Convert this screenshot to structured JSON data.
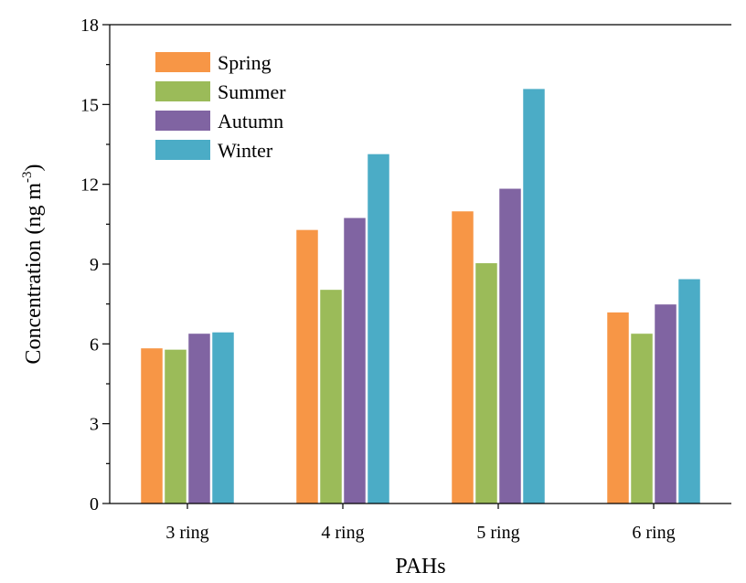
{
  "chart_data": {
    "type": "bar",
    "title": "",
    "xlabel": "PAHs",
    "ylabel": {
      "main": "Concentration (ng m",
      "superscript": "-3",
      "close": ")"
    },
    "categories": [
      "3 ring",
      "4 ring",
      "5 ring",
      "6 ring"
    ],
    "ylim": [
      0,
      18
    ],
    "yticks": [
      0,
      3,
      6,
      9,
      12,
      15,
      18
    ],
    "ytick_labels": [
      "0",
      "3",
      "6",
      "9",
      "12",
      "15",
      "18"
    ],
    "grid": false,
    "legend_position": "top-left",
    "series": [
      {
        "name": "Spring",
        "color": "#F79646",
        "values": [
          5.85,
          10.3,
          11.0,
          7.2
        ]
      },
      {
        "name": "Summer",
        "color": "#9BBB59",
        "values": [
          5.8,
          8.05,
          9.05,
          6.4
        ]
      },
      {
        "name": "Autumn",
        "color": "#8064A2",
        "values": [
          6.4,
          10.75,
          11.85,
          7.5
        ]
      },
      {
        "name": "Winter",
        "color": "#4BACC6",
        "values": [
          6.45,
          13.15,
          15.6,
          8.45
        ]
      }
    ]
  }
}
